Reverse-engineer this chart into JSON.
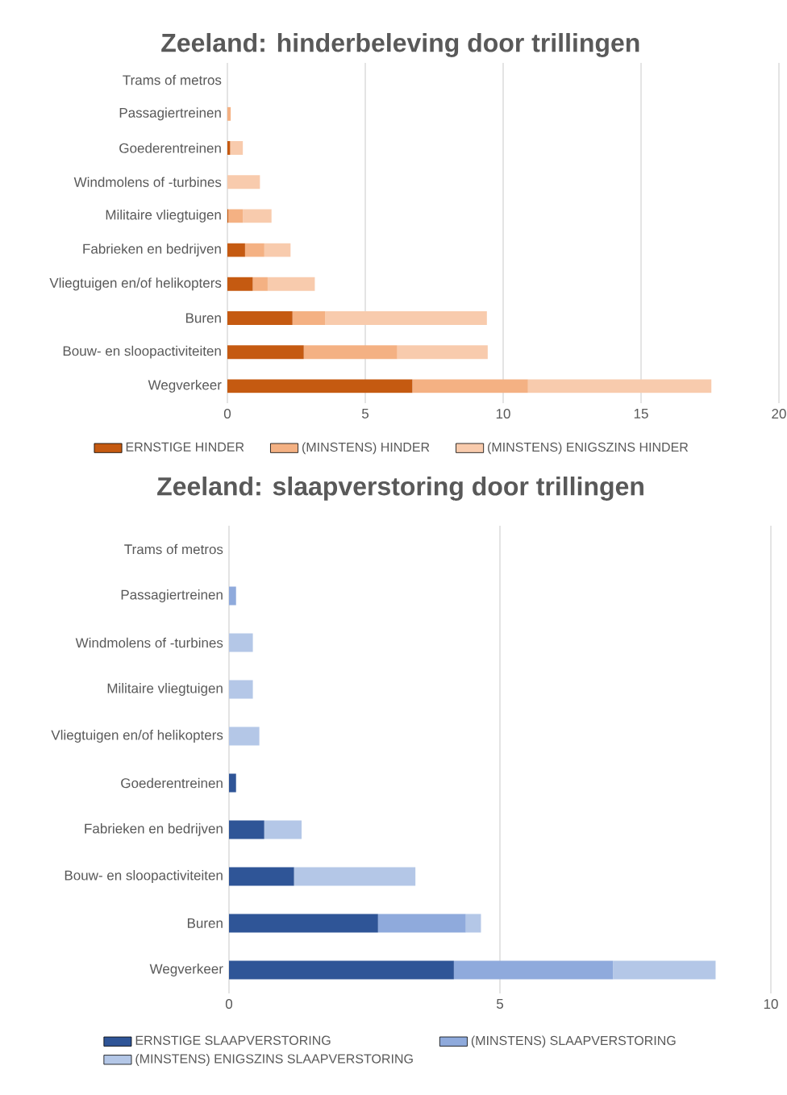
{
  "chart_data": [
    {
      "type": "bar",
      "orientation": "horizontal",
      "stacked": true,
      "title": "Zeeland: hinderbeleving door trillingen",
      "categories": [
        "Trams of metros",
        "Passagiertreinen",
        "Goederentreinen",
        "Windmolens of -turbines",
        "Militaire vliegtuigen",
        "Fabrieken en bedrijven",
        "Vliegtuigen en/of helikopters",
        "Buren",
        "Bouw- en sloopactiviteiten",
        "Wegverkeer"
      ],
      "series": [
        {
          "name": "ERNSTIGE HINDER",
          "color": "#c55a11",
          "values": [
            0,
            0,
            0.1,
            0,
            0.03,
            0.64,
            0.92,
            2.36,
            2.77,
            6.71
          ]
        },
        {
          "name": "(MINSTENS) HINDER",
          "color": "#f4b183",
          "values": [
            0,
            0.12,
            0,
            0,
            0.53,
            0.7,
            0.54,
            1.18,
            3.39,
            4.19
          ]
        },
        {
          "name": "(MINSTENS) ENIGSZINS HINDER",
          "color": "#f8cbad",
          "values": [
            0,
            0,
            0.46,
            1.18,
            1.04,
            0.95,
            1.71,
            5.87,
            3.28,
            6.65
          ]
        }
      ],
      "xlim": [
        0,
        20
      ],
      "xticks": [
        0,
        5,
        10,
        15,
        20
      ],
      "grid": "x",
      "legend": "bottom"
    },
    {
      "type": "bar",
      "orientation": "horizontal",
      "stacked": true,
      "title": "Zeeland: slaapverstoring door trillingen",
      "categories": [
        "Trams of metros",
        "Passagiertreinen",
        "Windmolens of -turbines",
        "Militaire vliegtuigen",
        "Vliegtuigen en/of helikopters",
        "Goederentreinen",
        "Fabrieken en bedrijven",
        "Bouw- en sloopactiviteiten",
        "Buren",
        "Wegverkeer"
      ],
      "series": [
        {
          "name": "ERNSTIGE SLAAPVERSTORING",
          "color": "#2f5597",
          "values": [
            0,
            0,
            0,
            0,
            0,
            0.13,
            0.65,
            1.2,
            2.75,
            4.15
          ]
        },
        {
          "name": "(MINSTENS) SLAAPVERSTORING",
          "color": "#8faadc",
          "values": [
            0,
            0.13,
            0,
            0,
            0,
            0,
            0,
            0,
            1.62,
            2.94
          ]
        },
        {
          "name": "(MINSTENS) ENIGSZINS SLAAPVERSTORING",
          "color": "#b4c7e7",
          "values": [
            0,
            0,
            0.44,
            0.44,
            0.56,
            0,
            0.69,
            2.24,
            0.28,
            1.89
          ]
        }
      ],
      "xlim": [
        0,
        10
      ],
      "xticks": [
        0,
        5,
        10
      ],
      "grid": "x",
      "legend": "bottom"
    }
  ]
}
